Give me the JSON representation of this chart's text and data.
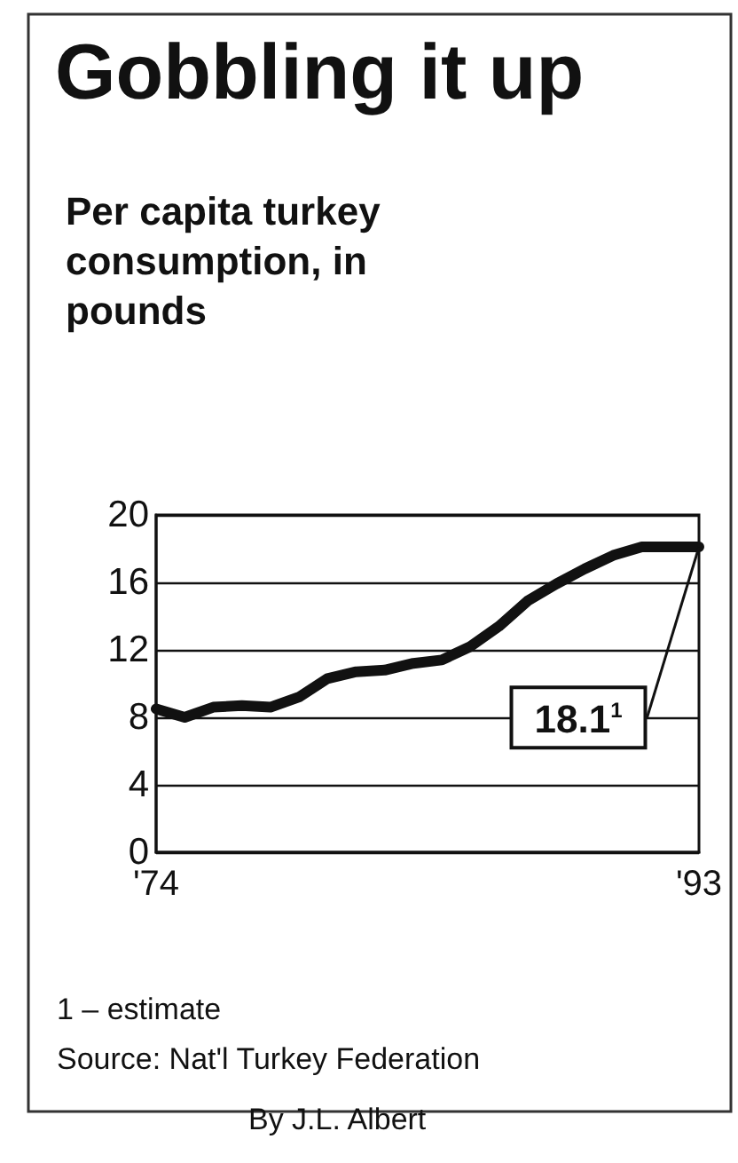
{
  "chart_data": {
    "type": "line",
    "title": "Gobbling it up",
    "subtitle": "Per capita turkey consumption, in pounds",
    "x": [
      1974,
      1975,
      1976,
      1977,
      1978,
      1979,
      1980,
      1981,
      1982,
      1983,
      1984,
      1985,
      1986,
      1987,
      1988,
      1989,
      1990,
      1991,
      1992,
      1993
    ],
    "series": [
      {
        "color": "#111111",
        "values": [
          8.5,
          8.0,
          8.6,
          8.7,
          8.6,
          9.2,
          10.3,
          10.7,
          10.8,
          11.2,
          11.4,
          12.2,
          13.4,
          14.9,
          15.9,
          16.8,
          17.6,
          18.1,
          18.1,
          18.1
        ]
      }
    ],
    "xlim": [
      1974,
      1993
    ],
    "xticks": [
      {
        "value": 1974,
        "label": "'74"
      },
      {
        "value": 1993,
        "label": "'93"
      }
    ],
    "ylim": [
      0,
      20
    ],
    "yticks": [
      0,
      4,
      8,
      12,
      16,
      20
    ],
    "grid": "y",
    "marker": "none",
    "line_style": "solid",
    "annotations": [
      {
        "text": "18.1$^{1}$",
        "x": 1993,
        "y": 18.1
      },
      "1 – estimate",
      "Source: Nat'l Turkey Federation",
      "By J.L. Albert"
    ]
  }
}
